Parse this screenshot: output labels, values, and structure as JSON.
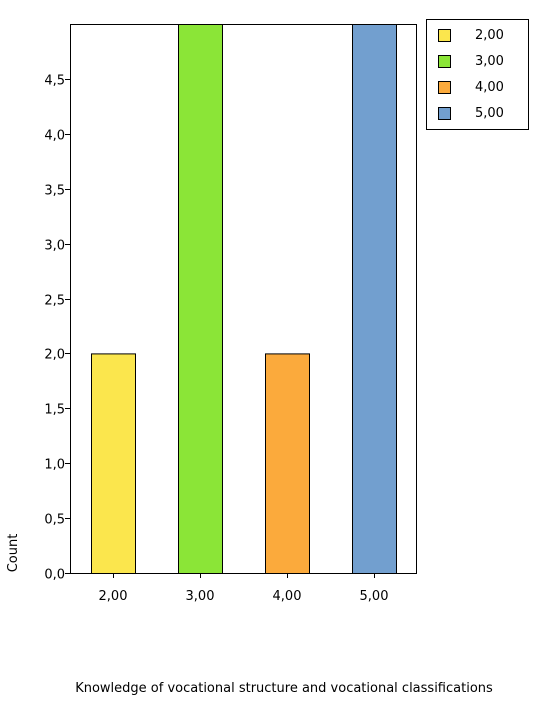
{
  "chart_data": {
    "type": "bar",
    "categories": [
      "2,00",
      "3,00",
      "4,00",
      "5,00"
    ],
    "values": [
      2,
      5,
      2,
      5
    ],
    "colors": [
      "#fbe64d",
      "#8be537",
      "#fbaa3c",
      "#729fcf"
    ],
    "xlabel": "Knowledge of vocational structure and vocational classifications",
    "ylabel": "Count",
    "ylim": [
      0,
      5
    ],
    "yticks": [
      0,
      0.5,
      1,
      1.5,
      2,
      2.5,
      3,
      3.5,
      4,
      4.5
    ],
    "ytick_labels": [
      "0,0",
      "0,5",
      "1,0",
      "1,5",
      "2,0",
      "2,5",
      "3,0",
      "3,5",
      "4,0",
      "4,5"
    ],
    "grid": false,
    "legend": {
      "placement": "top-right",
      "entries": [
        "2,00",
        "3,00",
        "4,00",
        "5,00"
      ]
    }
  }
}
